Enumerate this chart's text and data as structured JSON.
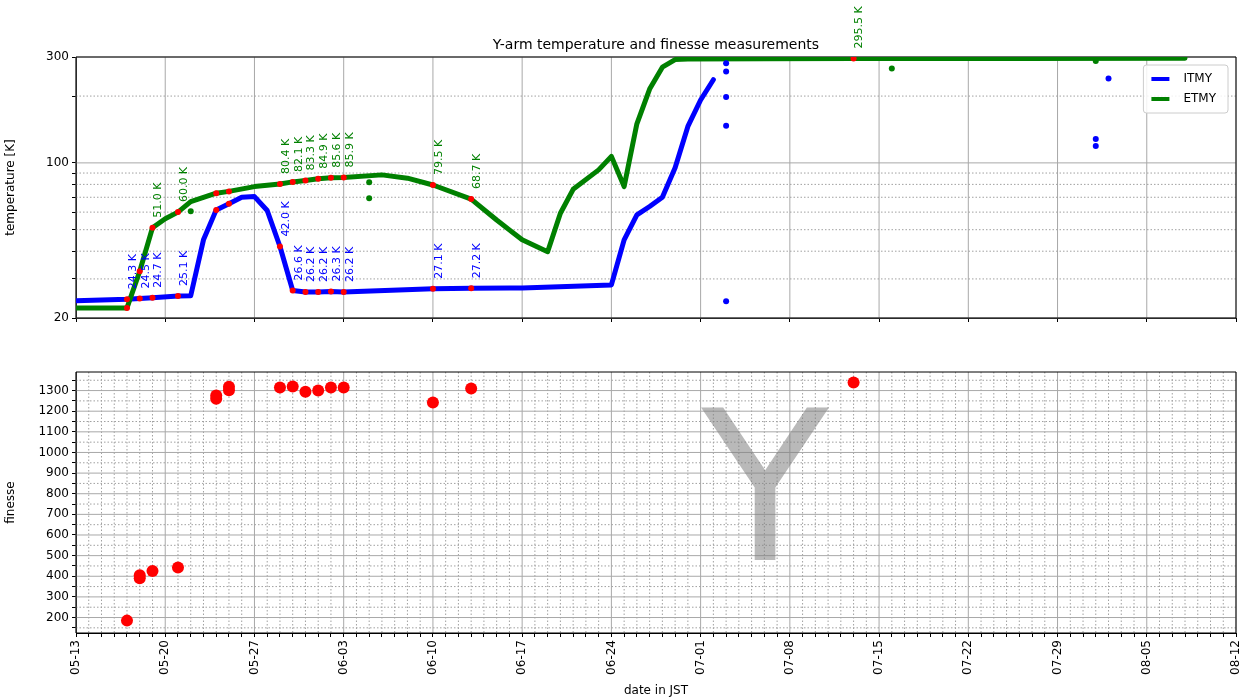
{
  "chart_data": [
    {
      "type": "line",
      "title": "Y-arm temperature and finesse measurements",
      "ylabel": "temperature [K]",
      "log": true,
      "grid": true,
      "legend": "top right",
      "tick_labels": "y",
      "xlim": [
        "--05-13",
        "--08-12"
      ],
      "ylim": [
        20,
        300
      ],
      "yticks": [
        20,
        {
          "value": 30,
          "label": null
        },
        {
          "value": 40,
          "label": null
        },
        {
          "value": 50,
          "label": null
        },
        {
          "value": 60,
          "label": null
        },
        {
          "value": 70,
          "label": null
        },
        {
          "value": 80,
          "label": null
        },
        {
          "value": 90,
          "label": null
        },
        100,
        {
          "value": 200,
          "label": null
        },
        300
      ],
      "xticks": [
        {
          "value": "--05-13",
          "label": null
        },
        {
          "value": "--05-20",
          "label": null
        },
        {
          "value": "--05-27",
          "label": null
        },
        {
          "value": "--06-03",
          "label": null
        },
        {
          "value": "--06-10",
          "label": null
        },
        {
          "value": "--06-17",
          "label": null
        },
        {
          "value": "--06-24",
          "label": null
        },
        {
          "value": "--07-01",
          "label": null
        },
        {
          "value": "--07-08",
          "label": null
        },
        {
          "value": "--07-15",
          "label": null
        },
        {
          "value": "--07-22",
          "label": null
        },
        {
          "value": "--07-29",
          "label": null
        },
        {
          "value": "--08-05",
          "label": null
        },
        {
          "value": "--08-12",
          "label": null
        }
      ],
      "series": [
        {
          "name": "ITMY",
          "type": "line",
          "color": "#0000ff",
          "x": [
            "--05-13",
            "--05-17",
            "--05-18",
            "--05-19",
            "--05-21",
            "--05-22",
            "--05-23",
            "--05-24",
            "--05-25",
            "--05-26",
            "--05-27",
            "--05-28",
            "--05-29",
            "--05-30",
            "--05-31",
            "--06-01",
            "--06-02",
            "--06-03",
            "--06-10",
            "--06-13",
            "--06-17",
            "--06-24",
            "--06-25",
            "--06-26",
            "--06-27",
            "--06-28",
            "--06-29",
            "--06-30",
            "--07-01",
            "--07-02"
          ],
          "values": [
            23.9,
            24.3,
            24.5,
            24.7,
            25.1,
            25.2,
            45.0,
            61.4,
            65.5,
            70.0,
            70.5,
            61.0,
            42.0,
            26.6,
            26.2,
            26.2,
            26.3,
            26.2,
            27.1,
            27.2,
            27.3,
            28.2,
            45.0,
            58.3,
            63.6,
            70.0,
            95,
            146,
            192,
            237
          ]
        },
        {
          "name": "ETMY",
          "type": "line",
          "color": "#008000",
          "x": [
            "--05-13",
            "--05-17",
            "--05-18",
            "--05-19",
            "--05-20",
            "--05-21",
            "--05-22",
            "--05-24",
            "--05-25",
            "--05-27",
            "--05-29",
            "--05-30",
            "--05-31",
            "--06-01",
            "--06-02",
            "--06-03",
            "--06-06",
            "--06-08",
            "--06-10",
            "--06-13",
            "--06-15",
            "--06-17",
            "--06-19",
            "--06-20",
            "--06-21",
            "--06-23",
            "--06-24",
            "--06-25",
            "--06-26",
            "--06-27",
            "--06-28",
            "--06-29",
            "--06-30",
            "--07-13",
            "--08-08"
          ],
          "values": [
            22.2,
            22.2,
            32.5,
            51.0,
            56,
            60.0,
            66.9,
            73.0,
            74.4,
            78.2,
            80.4,
            82.1,
            83.3,
            84.9,
            85.6,
            85.9,
            88.3,
            85.3,
            79.5,
            68.7,
            55.3,
            45.0,
            39.8,
            59.3,
            76.0,
            93,
            107,
            78.2,
            150,
            215,
            270,
            292,
            294,
            295.5,
            296
          ]
        },
        {
          "type": "scatter",
          "marker": "circle",
          "color": "#0000ff",
          "x": [
            "--07-03",
            "--07-03",
            "--07-03",
            "--07-03",
            "--07-03",
            "--08-01",
            "--08-01",
            "--08-02"
          ],
          "values": [
            281,
            258,
            198,
            147,
            23.8,
            128,
            119,
            240
          ]
        },
        {
          "type": "scatter",
          "marker": "circle",
          "color": "#008000",
          "x": [
            "--05-22",
            "--06-05",
            "--06-05",
            "--07-16",
            "--08-01"
          ],
          "values": [
            60.6,
            81.8,
            69.3,
            266,
            288
          ]
        },
        {
          "type": "scatter",
          "marker": "circle",
          "color": "#ff0000",
          "x": [
            "--05-17",
            "--05-18",
            "--05-19",
            "--05-21",
            "--05-24",
            "--05-25",
            "--05-29",
            "--05-30",
            "--05-31",
            "--06-01",
            "--06-02",
            "--06-03",
            "--06-10",
            "--06-13"
          ],
          "values": [
            24.3,
            24.5,
            24.7,
            25.1,
            61.4,
            65.5,
            42.0,
            26.6,
            26.2,
            26.2,
            26.3,
            26.2,
            27.1,
            27.2
          ],
          "value_labels": [
            "24.3 K",
            "24.5 K",
            "24.7 K",
            "25.1 K",
            null,
            null,
            "42.0 K",
            "26.6 K",
            "26.2 K",
            "26.2 K",
            "26.3 K",
            "26.2 K",
            "27.1 K",
            "27.2 K"
          ]
        },
        {
          "type": "scatter",
          "marker": "circle",
          "color": "#ff0000",
          "x": [
            "--05-17",
            "--05-18",
            "--05-19",
            "--05-21",
            "--05-24",
            "--05-25",
            "--05-29",
            "--05-30",
            "--05-31",
            "--06-01",
            "--06-02",
            "--06-03",
            "--06-10",
            "--06-13",
            "--07-13"
          ],
          "values": [
            22.2,
            32.5,
            51.0,
            60.0,
            73.0,
            74.4,
            80.4,
            82.1,
            83.3,
            84.9,
            85.6,
            85.9,
            79.5,
            68.7,
            295.5
          ],
          "value_labels": [
            null,
            null,
            "51.0 K",
            "60.0 K",
            null,
            null,
            "80.4 K",
            "82.1 K",
            "83.3 K",
            "84.9 K",
            "85.6 K",
            "85.9 K",
            "79.5 K",
            "68.7 K",
            "295.5 K"
          ]
        }
      ]
    },
    {
      "type": "scatter",
      "xlabel": "date in JST",
      "ylabel": "finesse",
      "grid": true,
      "marker": "circle",
      "annotations": [
        "Y"
      ],
      "xlim": [
        "--05-13",
        "--08-12"
      ],
      "ylim": [
        125,
        1390
      ],
      "yticks": [
        {
          "value": 150,
          "label": null
        },
        200,
        {
          "value": 250,
          "label": null
        },
        300,
        {
          "value": 350,
          "label": null
        },
        400,
        {
          "value": 450,
          "label": null
        },
        500,
        {
          "value": 550,
          "label": null
        },
        600,
        {
          "value": 650,
          "label": null
        },
        700,
        {
          "value": 750,
          "label": null
        },
        800,
        {
          "value": 850,
          "label": null
        },
        900,
        {
          "value": 950,
          "label": null
        },
        1000,
        {
          "value": 1050,
          "label": null
        },
        1100,
        {
          "value": 1150,
          "label": null
        },
        1200,
        {
          "value": 1250,
          "label": null
        },
        1300,
        {
          "value": 1350,
          "label": null
        }
      ],
      "xticks": [
        {
          "value": "--05-13",
          "label": "05-13"
        },
        {
          "value": "--05-14",
          "label": null
        },
        {
          "value": "--05-15",
          "label": null
        },
        {
          "value": "--05-16",
          "label": null
        },
        {
          "value": "--05-17",
          "label": null
        },
        {
          "value": "--05-18",
          "label": null
        },
        {
          "value": "--05-19",
          "label": null
        },
        {
          "value": "--05-20",
          "label": "05-20"
        },
        {
          "value": "--05-21",
          "label": null
        },
        {
          "value": "--05-22",
          "label": null
        },
        {
          "value": "--05-23",
          "label": null
        },
        {
          "value": "--05-24",
          "label": null
        },
        {
          "value": "--05-25",
          "label": null
        },
        {
          "value": "--05-26",
          "label": null
        },
        {
          "value": "--05-27",
          "label": "05-27"
        },
        {
          "value": "--05-28",
          "label": null
        },
        {
          "value": "--05-29",
          "label": null
        },
        {
          "value": "--05-30",
          "label": null
        },
        {
          "value": "--05-31",
          "label": null
        },
        {
          "value": "--06-01",
          "label": null
        },
        {
          "value": "--06-02",
          "label": null
        },
        {
          "value": "--06-03",
          "label": "06-03"
        },
        {
          "value": "--06-04",
          "label": null
        },
        {
          "value": "--06-05",
          "label": null
        },
        {
          "value": "--06-06",
          "label": null
        },
        {
          "value": "--06-07",
          "label": null
        },
        {
          "value": "--06-08",
          "label": null
        },
        {
          "value": "--06-09",
          "label": null
        },
        {
          "value": "--06-10",
          "label": "06-10"
        },
        {
          "value": "--06-11",
          "label": null
        },
        {
          "value": "--06-12",
          "label": null
        },
        {
          "value": "--06-13",
          "label": null
        },
        {
          "value": "--06-14",
          "label": null
        },
        {
          "value": "--06-15",
          "label": null
        },
        {
          "value": "--06-16",
          "label": null
        },
        {
          "value": "--06-17",
          "label": "06-17"
        },
        {
          "value": "--06-18",
          "label": null
        },
        {
          "value": "--06-19",
          "label": null
        },
        {
          "value": "--06-20",
          "label": null
        },
        {
          "value": "--06-21",
          "label": null
        },
        {
          "value": "--06-22",
          "label": null
        },
        {
          "value": "--06-23",
          "label": null
        },
        {
          "value": "--06-24",
          "label": "06-24"
        },
        {
          "value": "--06-25",
          "label": null
        },
        {
          "value": "--06-26",
          "label": null
        },
        {
          "value": "--06-27",
          "label": null
        },
        {
          "value": "--06-28",
          "label": null
        },
        {
          "value": "--06-29",
          "label": null
        },
        {
          "value": "--06-30",
          "label": null
        },
        {
          "value": "--07-01",
          "label": "07-01"
        },
        {
          "value": "--07-02",
          "label": null
        },
        {
          "value": "--07-03",
          "label": null
        },
        {
          "value": "--07-04",
          "label": null
        },
        {
          "value": "--07-05",
          "label": null
        },
        {
          "value": "--07-06",
          "label": null
        },
        {
          "value": "--07-07",
          "label": null
        },
        {
          "value": "--07-08",
          "label": "07-08"
        },
        {
          "value": "--07-09",
          "label": null
        },
        {
          "value": "--07-10",
          "label": null
        },
        {
          "value": "--07-11",
          "label": null
        },
        {
          "value": "--07-12",
          "label": null
        },
        {
          "value": "--07-13",
          "label": null
        },
        {
          "value": "--07-14",
          "label": null
        },
        {
          "value": "--07-15",
          "label": "07-15"
        },
        {
          "value": "--07-16",
          "label": null
        },
        {
          "value": "--07-17",
          "label": null
        },
        {
          "value": "--07-18",
          "label": null
        },
        {
          "value": "--07-19",
          "label": null
        },
        {
          "value": "--07-20",
          "label": null
        },
        {
          "value": "--07-21",
          "label": null
        },
        {
          "value": "--07-22",
          "label": "07-22"
        },
        {
          "value": "--07-23",
          "label": null
        },
        {
          "value": "--07-24",
          "label": null
        },
        {
          "value": "--07-25",
          "label": null
        },
        {
          "value": "--07-26",
          "label": null
        },
        {
          "value": "--07-27",
          "label": null
        },
        {
          "value": "--07-28",
          "label": null
        },
        {
          "value": "--07-29",
          "label": "07-29"
        },
        {
          "value": "--07-30",
          "label": null
        },
        {
          "value": "--07-31",
          "label": null
        },
        {
          "value": "--08-01",
          "label": null
        },
        {
          "value": "--08-02",
          "label": null
        },
        {
          "value": "--08-03",
          "label": null
        },
        {
          "value": "--08-04",
          "label": null
        },
        {
          "value": "--08-05",
          "label": "08-05"
        },
        {
          "value": "--08-06",
          "label": null
        },
        {
          "value": "--08-07",
          "label": null
        },
        {
          "value": "--08-08",
          "label": null
        },
        {
          "value": "--08-09",
          "label": null
        },
        {
          "value": "--08-10",
          "label": null
        },
        {
          "value": "--08-11",
          "label": null
        },
        {
          "value": "--08-12",
          "label": "08-12"
        }
      ],
      "series": [
        {
          "type": "scatter",
          "color": "#ff0000",
          "x": [
            "--05-17",
            "--05-18",
            "--05-18",
            "--05-19",
            "--05-21",
            "--05-24",
            "--05-24",
            "--05-25",
            "--05-25",
            "--05-29",
            "--05-30",
            "--05-31",
            "--06-01",
            "--06-02",
            "--06-03",
            "--06-10",
            "--06-13",
            "--07-13"
          ],
          "values": [
            185,
            405,
            390,
            425,
            442,
            1276,
            1260,
            1318,
            1302,
            1315,
            1320,
            1294,
            1300,
            1315,
            1315,
            1242,
            1310,
            1339
          ]
        }
      ]
    }
  ]
}
